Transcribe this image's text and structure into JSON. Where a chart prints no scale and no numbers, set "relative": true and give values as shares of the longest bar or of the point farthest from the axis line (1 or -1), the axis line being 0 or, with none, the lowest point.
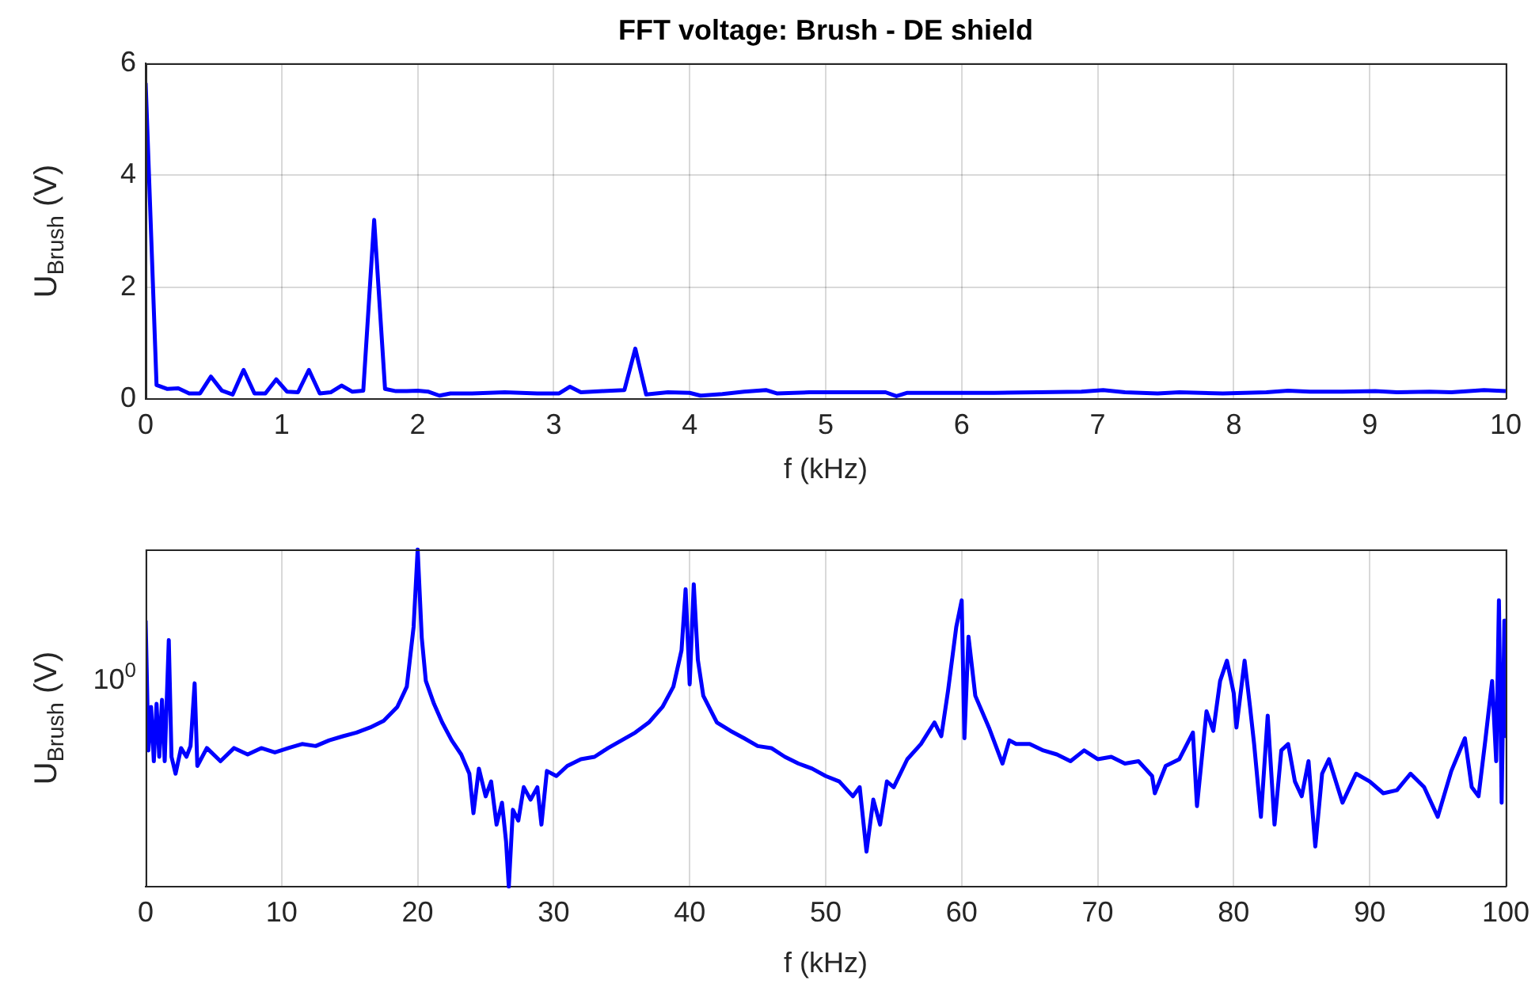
{
  "chart_data": [
    {
      "type": "line",
      "title": "FFT voltage: Brush - DE shield",
      "xlabel": "f (kHz)",
      "ylabel": "U$_{Brush}$ (V)",
      "marker": "none",
      "grid": true,
      "x": [
        0,
        0.08,
        0.16,
        0.24,
        0.32,
        0.4,
        0.48,
        0.56,
        0.64,
        0.72,
        0.8,
        0.88,
        0.96,
        1.04,
        1.12,
        1.2,
        1.28,
        1.36,
        1.44,
        1.52,
        1.6,
        1.68,
        1.76,
        1.84,
        1.92,
        2,
        2.08,
        2.16,
        2.24,
        2.4,
        2.64,
        2.88,
        3.04,
        3.12,
        3.2,
        3.36,
        3.52,
        3.6,
        3.68,
        3.84,
        4,
        4.08,
        4.24,
        4.4,
        4.56,
        4.64,
        4.88,
        5.2,
        5.44,
        5.52,
        5.6,
        5.92,
        6.24,
        6.56,
        6.88,
        7.04,
        7.2,
        7.44,
        7.6,
        7.92,
        8.24,
        8.4,
        8.56,
        8.8,
        9.04,
        9.2,
        9.44,
        9.6,
        9.84,
        10
      ],
      "series": [
        {
          "color": "#0000ff",
          "values": [
            5.65,
            0.25,
            0.18,
            0.19,
            0.1,
            0.1,
            0.4,
            0.15,
            0.08,
            0.52,
            0.1,
            0.1,
            0.35,
            0.13,
            0.12,
            0.52,
            0.1,
            0.12,
            0.24,
            0.13,
            0.15,
            3.2,
            0.18,
            0.14,
            0.14,
            0.15,
            0.13,
            0.06,
            0.1,
            0.1,
            0.12,
            0.1,
            0.1,
            0.22,
            0.12,
            0.14,
            0.16,
            0.9,
            0.08,
            0.12,
            0.11,
            0.06,
            0.09,
            0.13,
            0.16,
            0.1,
            0.12,
            0.12,
            0.12,
            0.05,
            0.11,
            0.11,
            0.11,
            0.12,
            0.13,
            0.16,
            0.12,
            0.1,
            0.12,
            0.1,
            0.12,
            0.15,
            0.13,
            0.13,
            0.14,
            0.12,
            0.13,
            0.12,
            0.16,
            0.14
          ]
        }
      ],
      "xlim": [
        0,
        10
      ],
      "xticks": [
        0,
        1,
        2,
        3,
        4,
        5,
        6,
        7,
        8,
        9,
        10
      ],
      "ylim": [
        0,
        6
      ],
      "yticks": [
        0,
        2,
        4,
        6
      ]
    },
    {
      "type": "line",
      "xlabel": "f (kHz)",
      "ylabel": "U$_{Brush}$ (V)",
      "marker": "none",
      "grid": "x",
      "relative": true,
      "annotations": [
        "10$^{0}$"
      ],
      "x": [
        0,
        0.2,
        0.4,
        0.6,
        0.8,
        1,
        1.2,
        1.4,
        1.7,
        1.9,
        2.2,
        2.6,
        3,
        3.3,
        3.6,
        3.8,
        4.5,
        5.5,
        6.5,
        7.5,
        8.5,
        9.5,
        10.5,
        11.5,
        12.5,
        13.5,
        14.5,
        15.5,
        16.5,
        17.5,
        18.5,
        19.2,
        19.7,
        20,
        20.3,
        20.6,
        21.2,
        21.8,
        22.5,
        23.2,
        23.8,
        24.1,
        24.5,
        25,
        25.4,
        25.8,
        26.2,
        26.5,
        26.7,
        27,
        27.4,
        27.8,
        28.3,
        28.8,
        29.1,
        29.5,
        30.2,
        31,
        32,
        33,
        34,
        35,
        36,
        37,
        38,
        38.8,
        39.4,
        39.7,
        40,
        40.3,
        40.6,
        41,
        42,
        43,
        44,
        45,
        46,
        47,
        48,
        49,
        50,
        51,
        52,
        52.5,
        53,
        53.5,
        54,
        54.5,
        55,
        56,
        57,
        58,
        58.5,
        59,
        59.6,
        60,
        60.2,
        60.5,
        61,
        62,
        63,
        63.5,
        64,
        65,
        66,
        67,
        68,
        69,
        70,
        71,
        72,
        73,
        74,
        74.2,
        75,
        76,
        77,
        77.3,
        78,
        78.5,
        79,
        79.5,
        80,
        80.2,
        80.8,
        81.2,
        81.5,
        82,
        82.5,
        83,
        83.5,
        84,
        84.5,
        85,
        85.5,
        86,
        86.5,
        87,
        88,
        89,
        90,
        91,
        92,
        93,
        94,
        95,
        96,
        97,
        97.5,
        98,
        98.5,
        99,
        99.3,
        99.5,
        99.7,
        99.9,
        100
      ],
      "series": [
        {
          "color": "#0000ff",
          "values": [
            0.789,
            0.404,
            0.533,
            0.372,
            0.542,
            0.385,
            0.554,
            0.372,
            0.731,
            0.385,
            0.335,
            0.411,
            0.385,
            0.417,
            0.603,
            0.358,
            0.411,
            0.372,
            0.411,
            0.392,
            0.411,
            0.398,
            0.411,
            0.423,
            0.417,
            0.434,
            0.446,
            0.457,
            0.472,
            0.492,
            0.533,
            0.593,
            0.77,
            1,
            0.738,
            0.61,
            0.542,
            0.487,
            0.434,
            0.392,
            0.335,
            0.218,
            0.35,
            0.268,
            0.312,
            0.184,
            0.249,
            0.133,
            0,
            0.228,
            0.196,
            0.295,
            0.258,
            0.295,
            0.184,
            0.343,
            0.328,
            0.358,
            0.378,
            0.385,
            0.411,
            0.434,
            0.457,
            0.487,
            0.533,
            0.593,
            0.701,
            0.882,
            0.6,
            0.897,
            0.673,
            0.566,
            0.487,
            0.462,
            0.44,
            0.417,
            0.411,
            0.385,
            0.365,
            0.35,
            0.328,
            0.312,
            0.268,
            0.295,
            0.104,
            0.258,
            0.184,
            0.312,
            0.295,
            0.378,
            0.423,
            0.487,
            0.446,
            0.582,
            0.77,
            0.849,
            0.44,
            0.741,
            0.566,
            0.472,
            0.365,
            0.434,
            0.423,
            0.423,
            0.404,
            0.392,
            0.372,
            0.404,
            0.378,
            0.385,
            0.365,
            0.372,
            0.328,
            0.277,
            0.358,
            0.378,
            0.457,
            0.239,
            0.52,
            0.462,
            0.61,
            0.67,
            0.574,
            0.472,
            0.67,
            0.533,
            0.423,
            0.207,
            0.507,
            0.184,
            0.404,
            0.423,
            0.312,
            0.268,
            0.372,
            0.119,
            0.335,
            0.378,
            0.249,
            0.335,
            0.312,
            0.277,
            0.286,
            0.335,
            0.295,
            0.207,
            0.343,
            0.44,
            0.295,
            0.268,
            0.434,
            0.61,
            0.372,
            0.849,
            0.249,
            0.789,
            0.446
          ]
        }
      ],
      "xlim": [
        0,
        100
      ],
      "xticks": [
        0,
        10,
        20,
        30,
        40,
        50,
        60,
        70,
        80,
        90,
        100
      ]
    }
  ]
}
